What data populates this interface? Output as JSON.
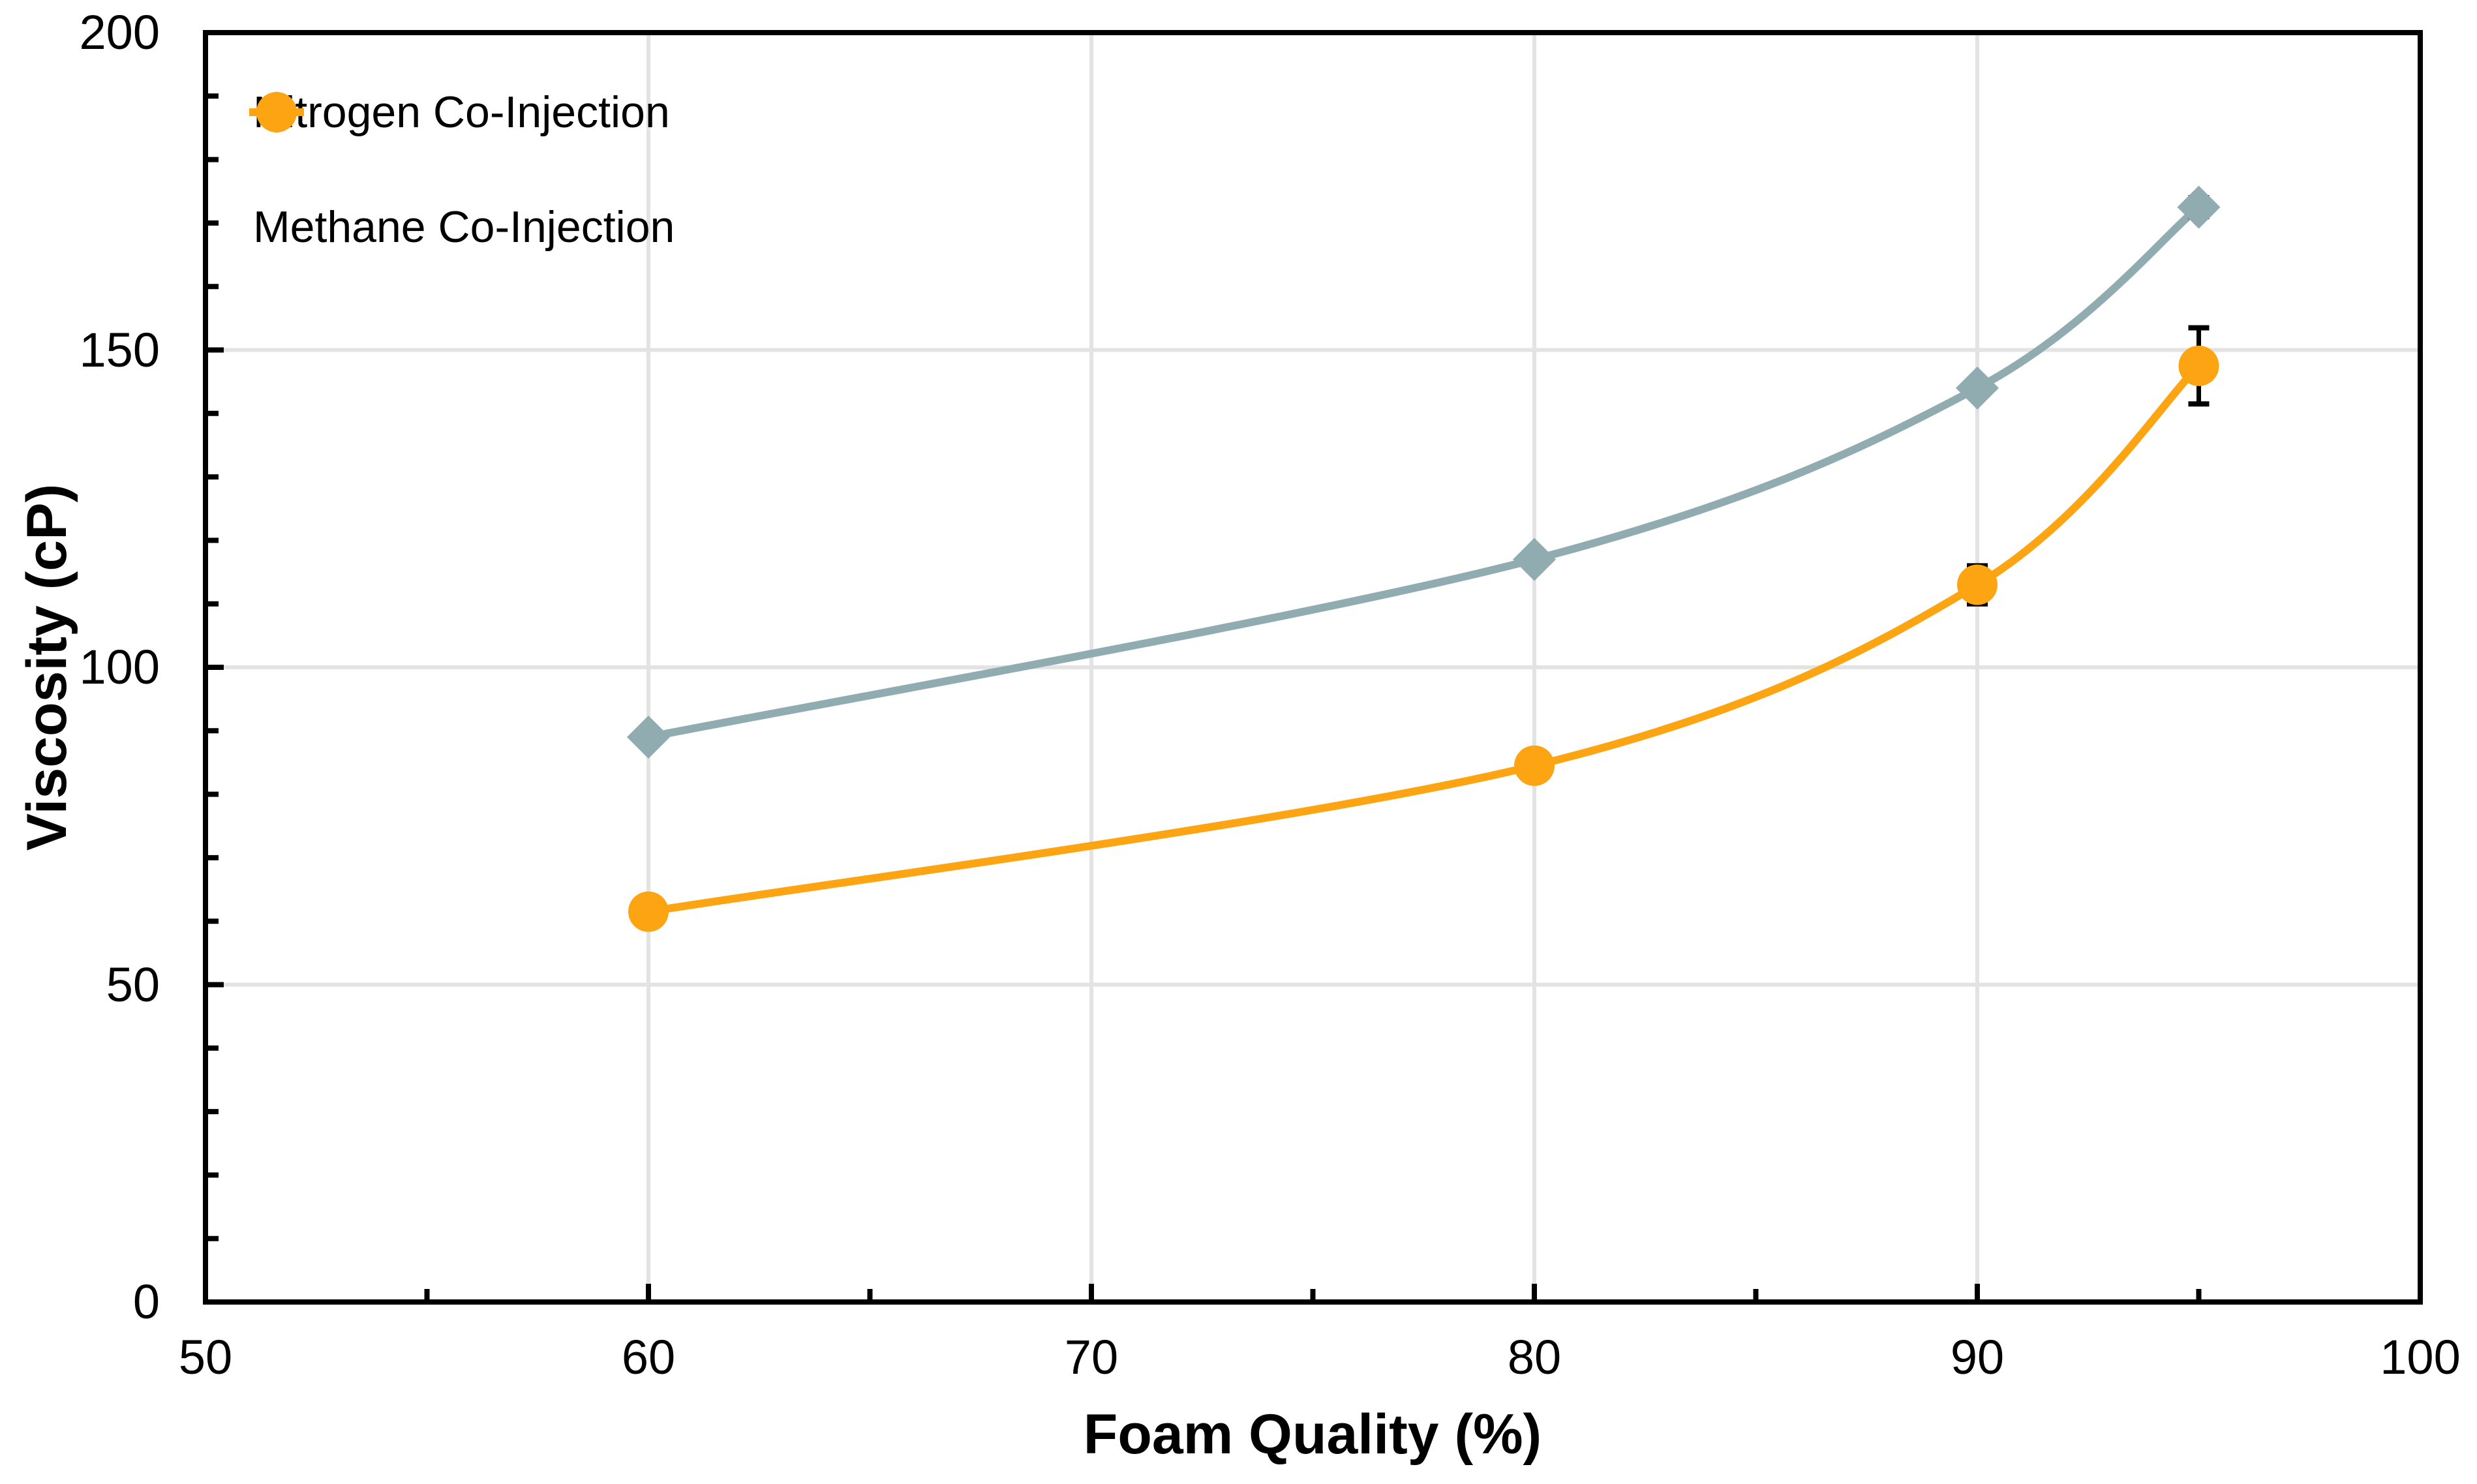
{
  "chart_data": {
    "type": "line",
    "title": "",
    "xlabel": "Foam Quality (%)",
    "ylabel": "Viscosity (cP)",
    "x": [
      60,
      80,
      90,
      95
    ],
    "xlim": [
      50,
      100
    ],
    "ylim": [
      0,
      200
    ],
    "x_tick_labels": [
      "50",
      "60",
      "70",
      "80",
      "90",
      "100"
    ],
    "y_tick_labels": [
      "0",
      "50",
      "100",
      "150",
      "200"
    ],
    "x_major_tick_step": 10,
    "x_minor_tick_step": 5,
    "y_major_tick_step": 50,
    "y_minor_tick_step": 10,
    "grid": "on",
    "gridline_color": "#E3E3E3",
    "axis_color": "#000000",
    "error_bar_color": "#000000",
    "legend_position": "top-left-inside",
    "smooth_lines": true,
    "series": [
      {
        "name": "Nitrogen Co-Injection",
        "marker": "diamond",
        "color": "#91ACB1",
        "values": [
          89,
          117,
          144,
          172.5
        ],
        "error_bars": [
          null,
          null,
          null,
          1.5
        ]
      },
      {
        "name": "Methane Co-Injection",
        "marker": "circle",
        "color": "#FDA412",
        "values": [
          61.5,
          84.5,
          113,
          147.5
        ],
        "error_bars": [
          null,
          null,
          3,
          6
        ]
      }
    ]
  }
}
